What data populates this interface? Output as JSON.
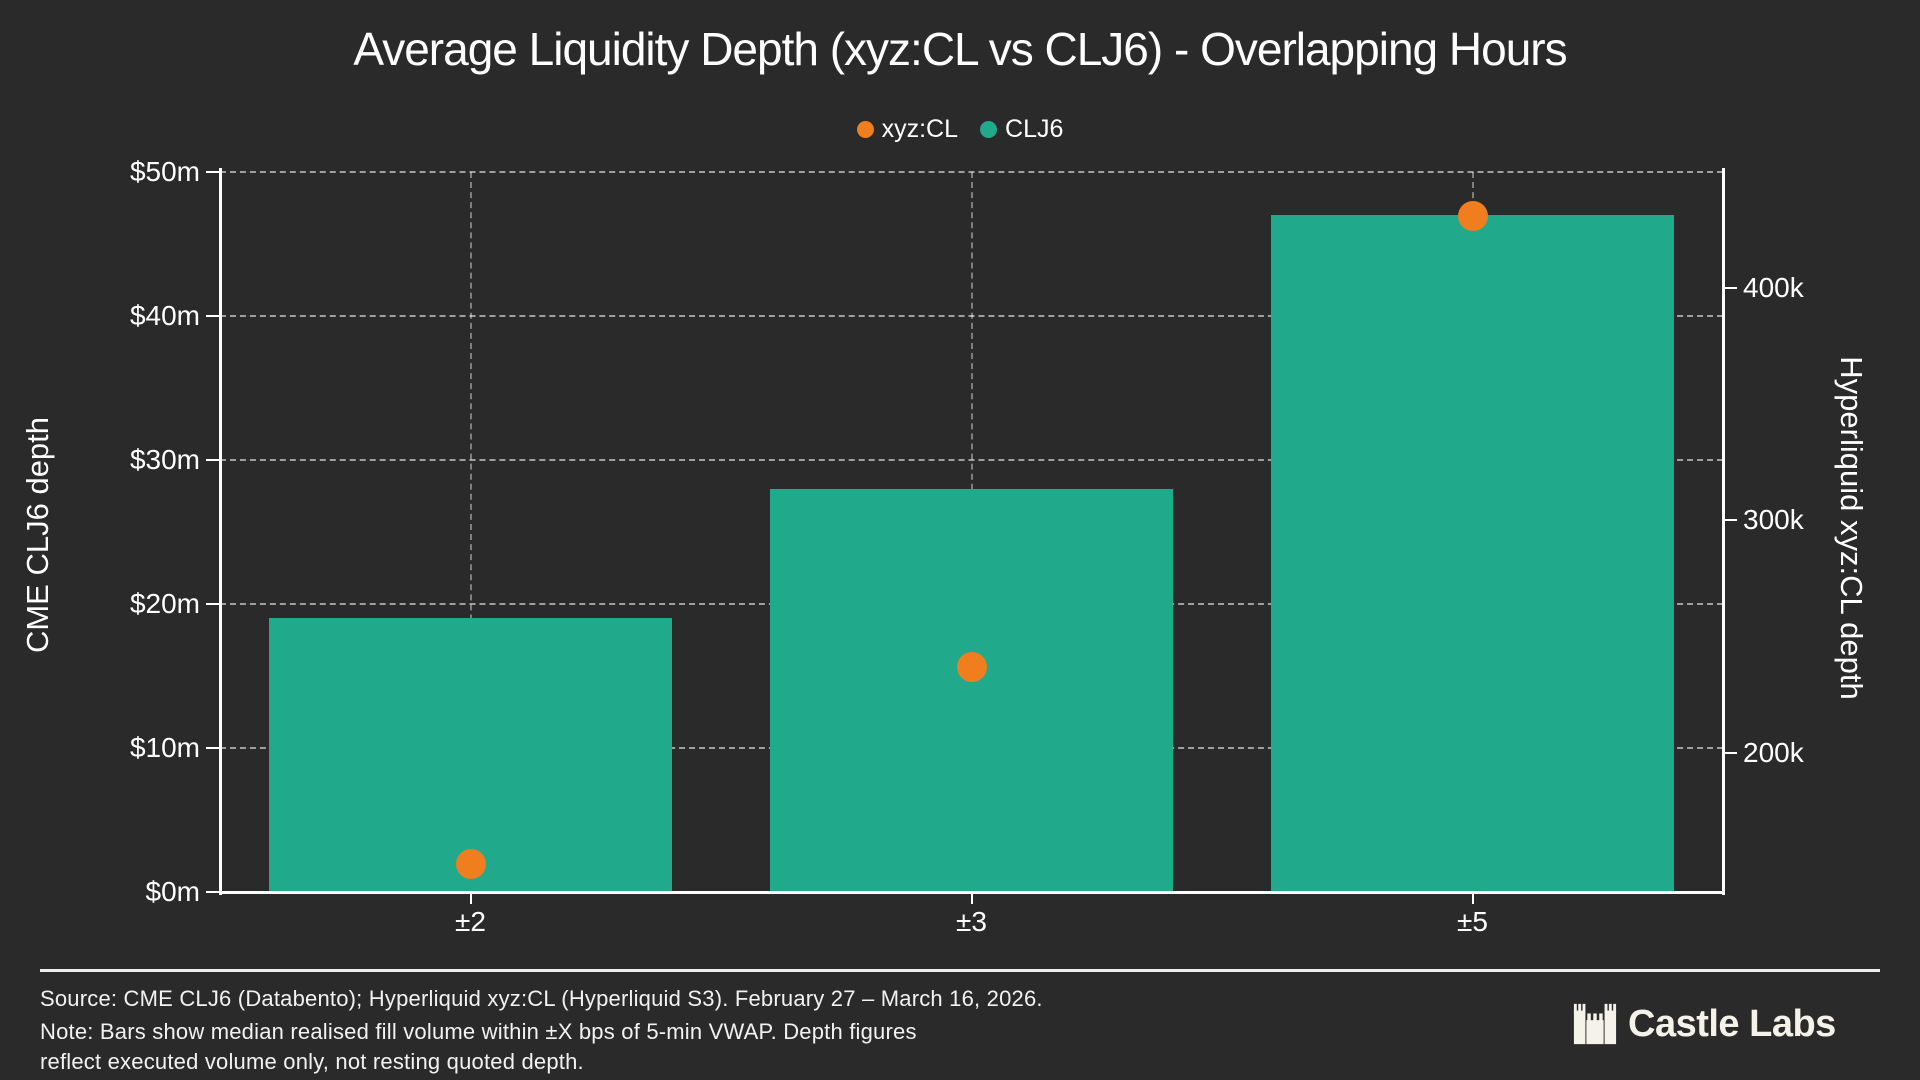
{
  "title": "Average Liquidity Depth (xyz:CL vs CLJ6) - Overlapping Hours",
  "legend": [
    {
      "label": "xyz:CL",
      "color": "#F07D1E"
    },
    {
      "label": "CLJ6",
      "color": "#21A98C"
    }
  ],
  "chart_data": {
    "type": "bar",
    "title": "Average Liquidity Depth (xyz:CL vs CLJ6) - Overlapping Hours",
    "categories": [
      "±2",
      "±3",
      "±5"
    ],
    "series": [
      {
        "name": "CLJ6",
        "type": "bar",
        "axis": "left",
        "unit": "$m",
        "values": [
          19,
          28,
          47
        ],
        "color": "#21A98C"
      },
      {
        "name": "xyz:CL",
        "type": "scatter",
        "axis": "right",
        "unit": "k",
        "values": [
          152,
          237,
          431
        ],
        "color": "#F07D1E"
      }
    ],
    "left_axis": {
      "label": "CME CLJ6 depth",
      "tick_labels": [
        "$0m",
        "$10m",
        "$20m",
        "$30m",
        "$40m",
        "$50m"
      ],
      "tick_values": [
        0,
        10,
        20,
        30,
        40,
        50
      ],
      "range": [
        0,
        50
      ]
    },
    "right_axis": {
      "label": "Hyperliquid xyz:CL depth",
      "tick_labels": [
        "200k",
        "300k",
        "400k"
      ],
      "tick_values": [
        200,
        300,
        400
      ],
      "range": [
        140,
        450
      ]
    },
    "grid": true,
    "legend_position": "top"
  },
  "footer": {
    "source_line": "Source: CME CLJ6 (Databento); Hyperliquid xyz:CL (Hyperliquid S3). February 27 – March 16, 2026.",
    "note_line1": "Note: Bars show median realised fill volume within ±X bps of 5-min VWAP. Depth figures",
    "note_line2": "reflect executed volume only, not resting quoted depth."
  },
  "brand": {
    "name": "Castle Labs",
    "icon": "castle-icon"
  },
  "colors": {
    "background": "#2a2a2a",
    "bar": "#21A98C",
    "dot": "#F07D1E",
    "text": "#ffffff",
    "footer_text": "#f2f2f2",
    "brand_text": "#f5f2e9"
  }
}
